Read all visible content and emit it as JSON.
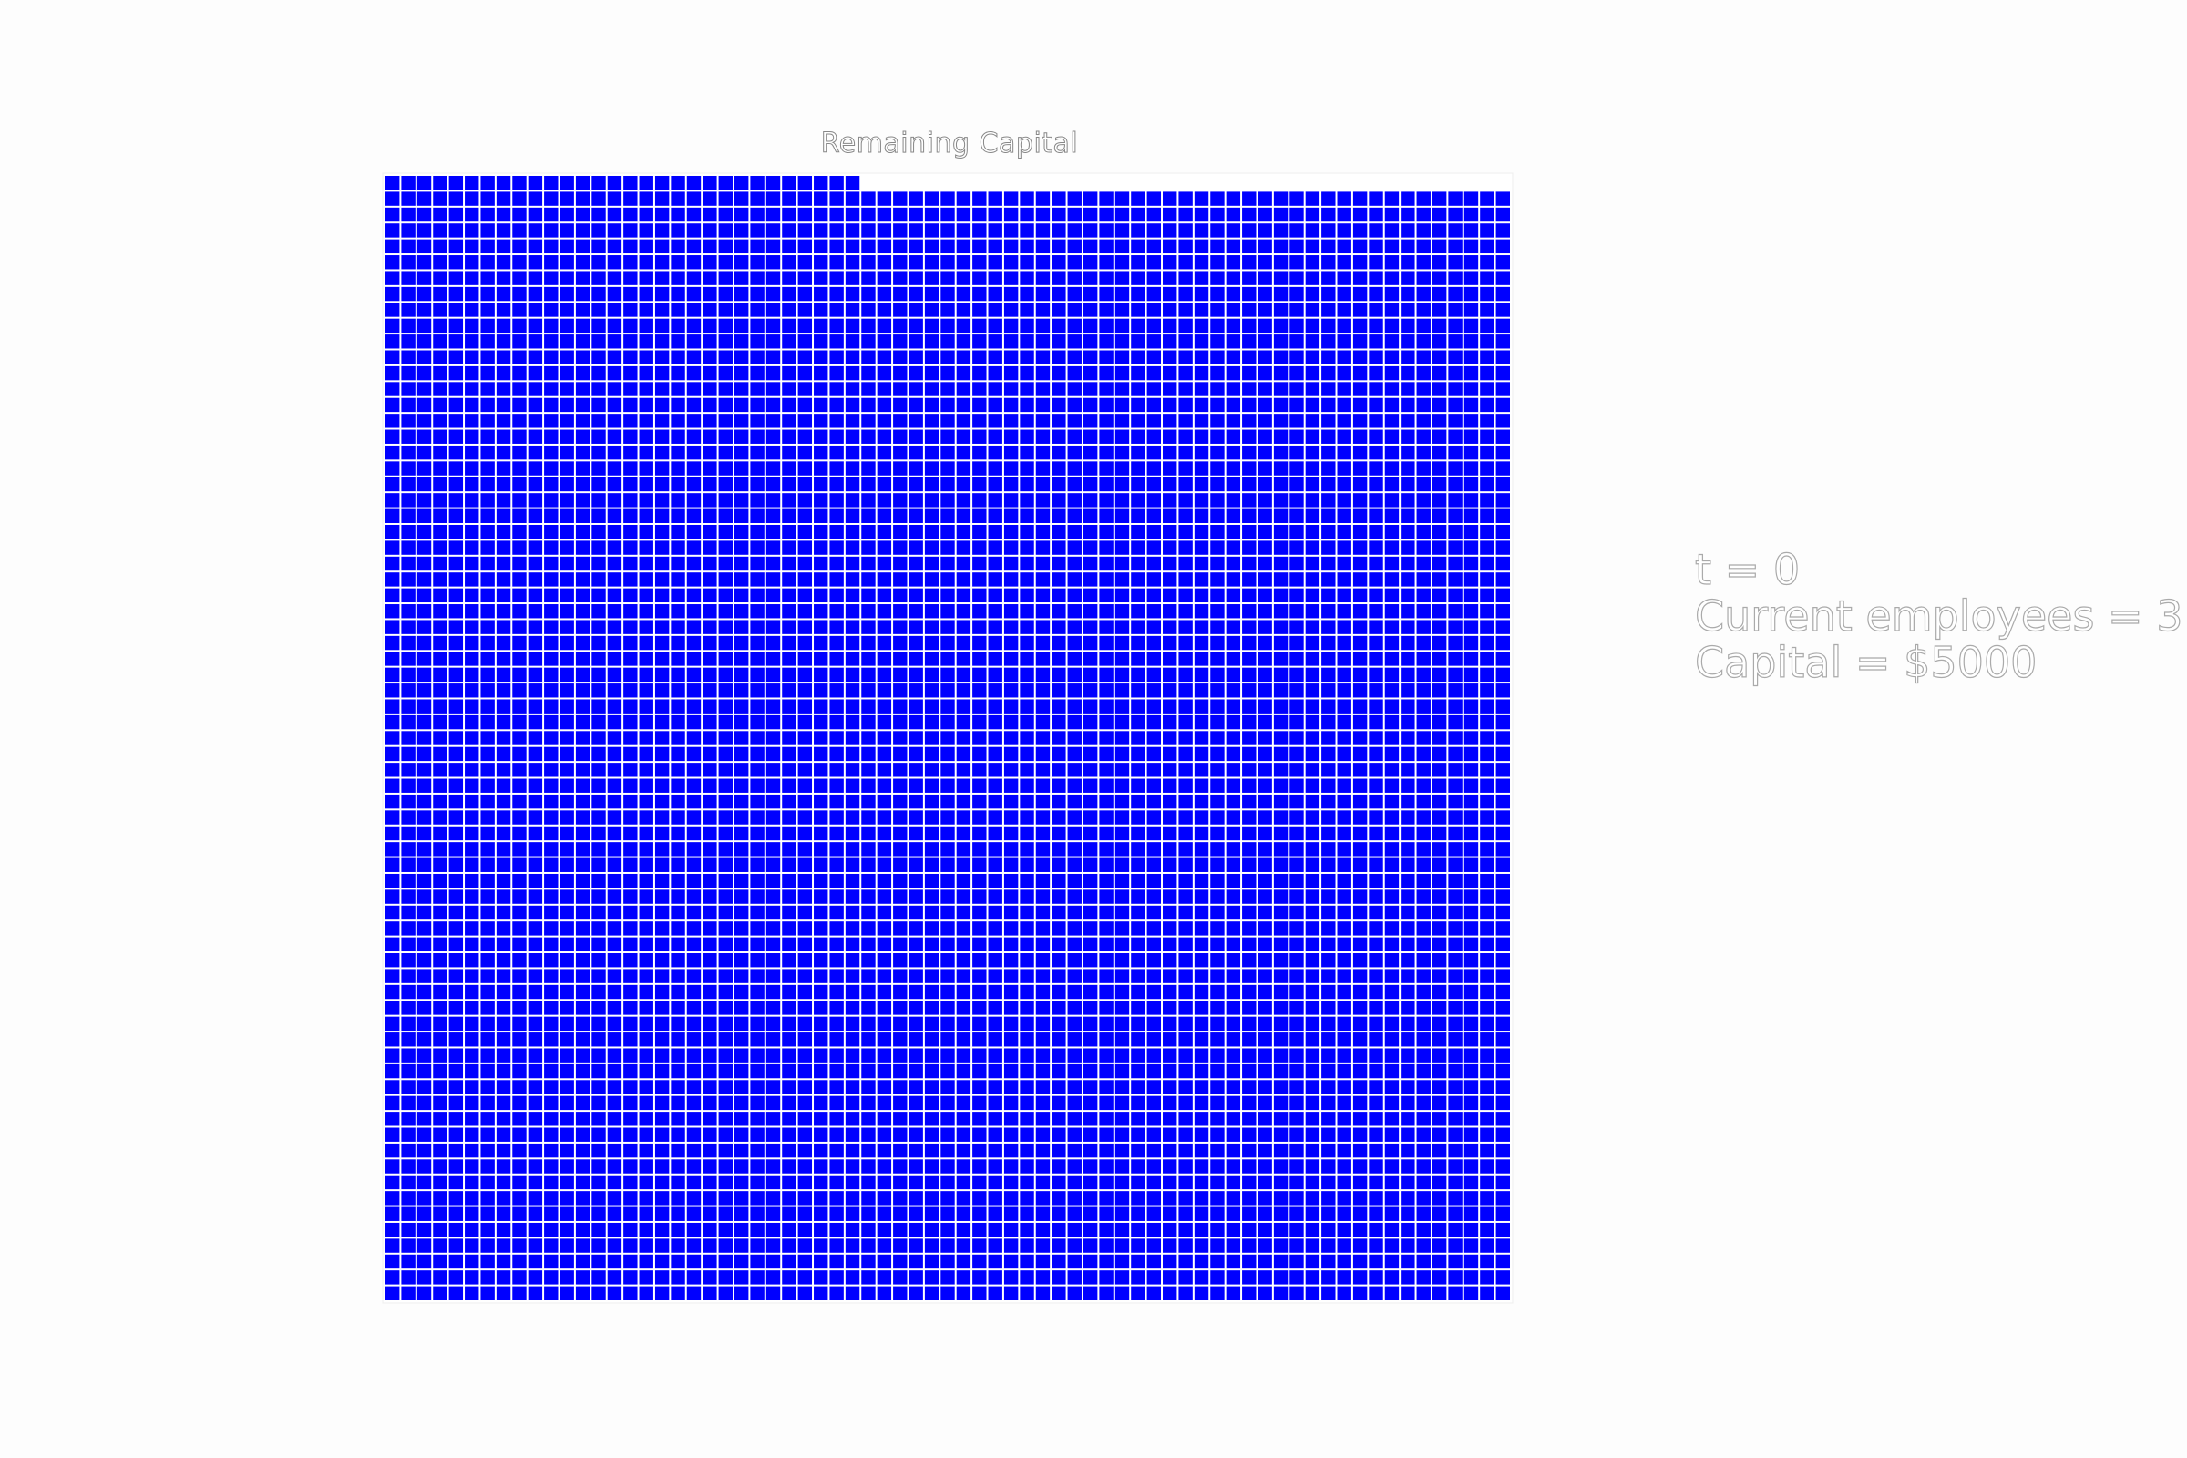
{
  "chart_data": {
    "type": "waffle",
    "title": "Remaining Capital",
    "grid_rows": 71,
    "grid_cols": 71,
    "total_cells": 5041,
    "filled_cells": 5000,
    "fill_color": "#0000ff",
    "gap_color": "#ffffff",
    "fill_order": "row-major from bottom-left; top row partially filled",
    "axes": "off",
    "grid": false
  },
  "info": {
    "time_label": "t = 0",
    "employees_label": "Current employees = 3",
    "capital_label": "Capital = $5000"
  }
}
